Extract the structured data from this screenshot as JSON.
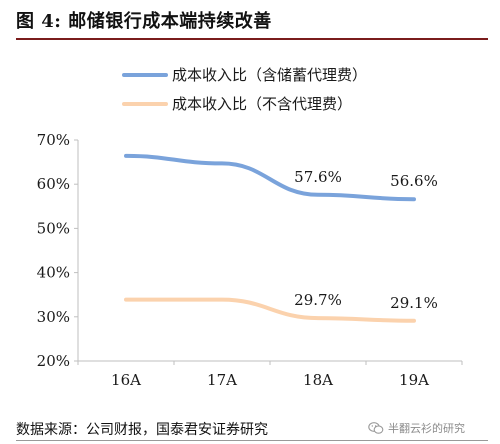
{
  "figure": {
    "title": "图 4:  邮储银行成本端持续改善",
    "source": "数据来源：公司财报，国泰君安证券研究",
    "watermark": "半翻云衫的研究"
  },
  "colors": {
    "series_with_agency": "#7aa3db",
    "series_without_agency": "#fbd2ad",
    "axis": "#bfbfbf",
    "header_rule": "#7a1c1c"
  },
  "chart_data": {
    "type": "line",
    "categories": [
      "16A",
      "17A",
      "18A",
      "19A"
    ],
    "series": [
      {
        "name": "成本收入比（含储蓄代理费）",
        "values": [
          66.4,
          64.7,
          57.6,
          56.6
        ],
        "color": "#7aa3db"
      },
      {
        "name": "成本收入比（不含代理费）",
        "values": [
          33.9,
          33.9,
          29.7,
          29.1
        ],
        "color": "#fbd2ad"
      }
    ],
    "data_labels": [
      {
        "series": 0,
        "index": 2,
        "text": "57.6%"
      },
      {
        "series": 0,
        "index": 3,
        "text": "56.6%"
      },
      {
        "series": 1,
        "index": 2,
        "text": "29.7%"
      },
      {
        "series": 1,
        "index": 3,
        "text": "29.1%"
      }
    ],
    "yticks": [
      {
        "value": 20,
        "label": "20%"
      },
      {
        "value": 30,
        "label": "30%"
      },
      {
        "value": 40,
        "label": "40%"
      },
      {
        "value": 50,
        "label": "50%"
      },
      {
        "value": 60,
        "label": "60%"
      },
      {
        "value": 70,
        "label": "70%"
      }
    ],
    "ylim": [
      20,
      70
    ],
    "grid": false,
    "smooth": true,
    "legend_position": "top-left"
  }
}
